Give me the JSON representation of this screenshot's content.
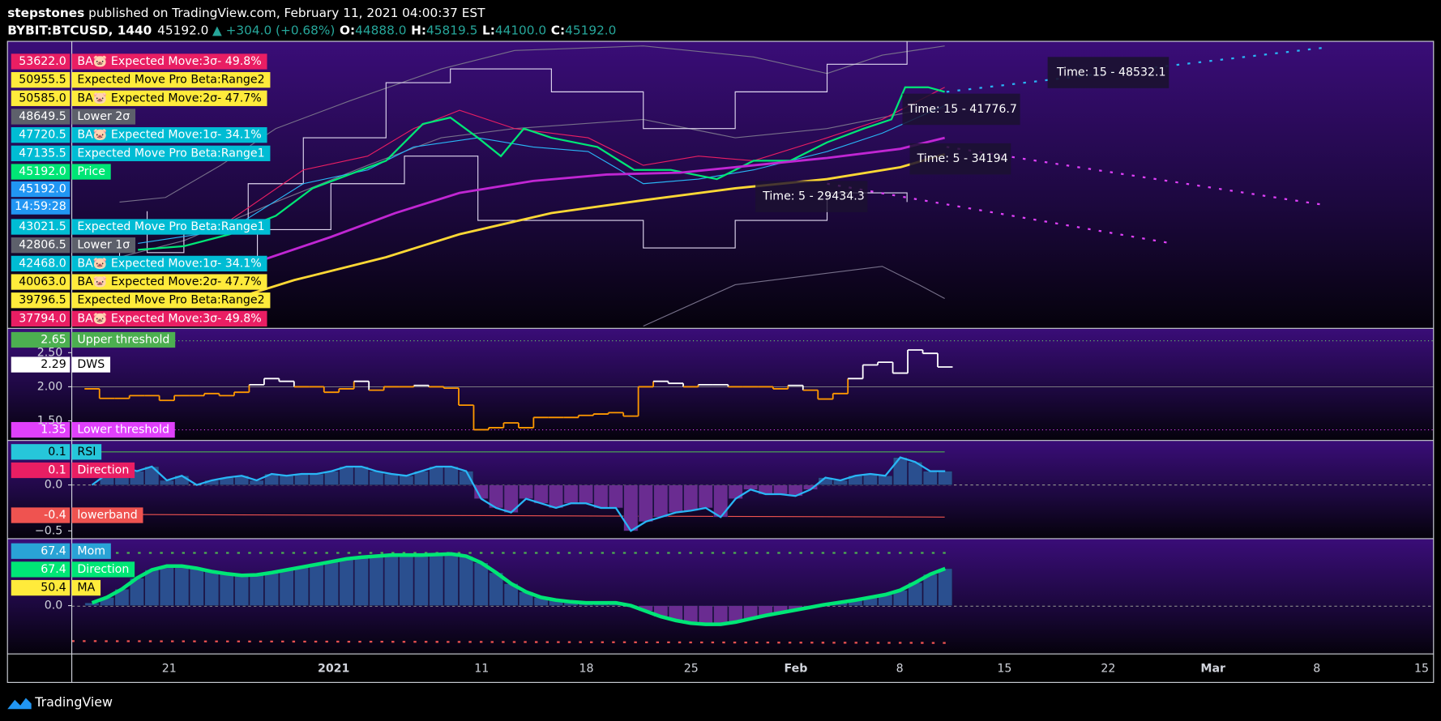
{
  "header": {
    "author": "stepstones",
    "published": " published on TradingView.com, February 11, 2021 04:00:37 EST",
    "symbol": "BYBIT:BTCUSD, 1440",
    "last": "45192.0",
    "change": "▲ +304.0 (+0.68%)",
    "ohlc": [
      {
        "key": "O:",
        "value": "44888.0"
      },
      {
        "key": "H:",
        "value": "45819.5"
      },
      {
        "key": "L:",
        "value": "44100.0"
      },
      {
        "key": "C:",
        "value": "45192.0"
      }
    ]
  },
  "main_pane": {
    "labels": [
      {
        "value": "53622.0",
        "text": "BA🐷 Expected Move:3σ- 49.8%",
        "color": "#e91e63"
      },
      {
        "value": "50955.5",
        "text": "Expected Move Pro Beta:Range2",
        "color": "#ffeb3b"
      },
      {
        "value": "50585.0",
        "text": "BA🐷 Expected Move:2σ- 47.7%",
        "color": "#ffeb3b"
      },
      {
        "value": "48649.5",
        "text": "Lower 2σ",
        "color": "#5d606b"
      },
      {
        "value": "47720.5",
        "text": "BA🐷 Expected Move:1σ- 34.1%",
        "color": "#00bcd4"
      },
      {
        "value": "47135.5",
        "text": "Expected Move Pro Beta:Range1",
        "color": "#00bcd4"
      },
      {
        "value": "45192.0",
        "text": "Price",
        "color": "#00e676"
      },
      {
        "value": "45192.0",
        "color": "#2196f3"
      },
      {
        "value": "14:59:28",
        "color": "#2196f3"
      },
      {
        "value": "43021.5",
        "text": "Expected Move Pro Beta:Range1",
        "color": "#00bcd4"
      },
      {
        "value": "42806.5",
        "text": "Lower 1σ",
        "color": "#5d606b"
      },
      {
        "value": "42468.0",
        "text": "BA🐷 Expected Move:1σ- 34.1%",
        "color": "#00bcd4"
      },
      {
        "value": "40063.0",
        "text": "BA🐷 Expected Move:2σ- 47.7%",
        "color": "#ffeb3b"
      },
      {
        "value": "39796.5",
        "text": "Expected Move Pro Beta:Range2",
        "color": "#ffeb3b"
      },
      {
        "value": "37794.0",
        "text": "BA🐷 Expected Move:3σ- 49.8%",
        "color": "#e91e63"
      }
    ],
    "tooltips": [
      "Time: 15 - 48532.1",
      "Time: 15 - 41776.7",
      "Time: 5 - 34194",
      "Time: 5 - 29434.3"
    ]
  },
  "dws_pane": {
    "labels": [
      {
        "value": "2.65",
        "text": "Upper threshold",
        "color": "#4caf50"
      },
      {
        "value": "2.29",
        "text": "DWS",
        "color": "#ffffff"
      },
      {
        "value": "1.35",
        "text": "Lower threshold",
        "color": "#e040fb"
      }
    ],
    "ylim": [
      1.22,
      2.85
    ],
    "yticks": [
      {
        "value": 2.5,
        "label": "2.50"
      },
      {
        "value": 2,
        "label": "2.00"
      },
      {
        "value": 1.5,
        "label": "1.50"
      }
    ],
    "values": [
      1.97,
      1.83,
      1.83,
      1.87,
      1.87,
      1.8,
      1.87,
      1.87,
      1.9,
      1.87,
      1.92,
      2.03,
      2.12,
      2.08,
      2.0,
      2.0,
      1.92,
      1.97,
      2.08,
      1.95,
      2.0,
      2.0,
      2.02,
      2.0,
      1.98,
      1.73,
      1.37,
      1.4,
      1.47,
      1.4,
      1.55,
      1.55,
      1.55,
      1.58,
      1.6,
      1.62,
      1.57,
      2.0,
      2.08,
      2.05,
      2.0,
      2.03,
      2.03,
      2.0,
      2.0,
      2.0,
      1.97,
      2.02,
      1.95,
      1.82,
      1.9,
      2.12,
      2.32,
      2.36,
      2.2,
      2.54,
      2.49,
      2.29
    ]
  },
  "rsi_pane": {
    "labels": [
      {
        "value": "0.1",
        "text": "RSI",
        "color": "#26c6da"
      },
      {
        "value": "0.1",
        "text": "Direction",
        "color": "#e91e63"
      },
      {
        "value": "-0.4",
        "text": "lowerband",
        "color": "#ef5350"
      }
    ],
    "ylim": [
      -0.58,
      0.48
    ],
    "yticks": [
      {
        "value": 0,
        "label": "0.0"
      },
      {
        "value": -0.5,
        "label": "−0.5"
      }
    ],
    "values": [
      0.0,
      0.12,
      0.2,
      0.15,
      0.2,
      0.05,
      0.1,
      0.0,
      0.05,
      0.08,
      0.1,
      0.05,
      0.12,
      0.1,
      0.12,
      0.12,
      0.15,
      0.2,
      0.2,
      0.15,
      0.12,
      0.1,
      0.15,
      0.2,
      0.2,
      0.15,
      -0.15,
      -0.25,
      -0.3,
      -0.15,
      -0.2,
      -0.25,
      -0.2,
      -0.2,
      -0.25,
      -0.25,
      -0.5,
      -0.4,
      -0.35,
      -0.3,
      -0.28,
      -0.25,
      -0.35,
      -0.15,
      -0.05,
      -0.1,
      -0.1,
      -0.12,
      -0.05,
      0.08,
      0.05,
      0.1,
      0.12,
      0.1,
      0.3,
      0.25,
      0.15,
      0.15
    ]
  },
  "mom_pane": {
    "labels": [
      {
        "value": "67.4",
        "text": "Mom",
        "color": "#29a3d6"
      },
      {
        "value": "67.4",
        "text": "Direction",
        "color": "#00e676"
      },
      {
        "value": "50.4",
        "text": "MA",
        "color": "#ffeb3b"
      }
    ],
    "ylim": [
      -88,
      121
    ],
    "yticks": [
      {
        "value": 0,
        "label": "0.0"
      }
    ],
    "values": [
      5,
      15,
      30,
      50,
      65,
      72,
      72,
      68,
      62,
      58,
      55,
      56,
      60,
      65,
      70,
      75,
      80,
      85,
      88,
      90,
      92,
      92,
      92,
      93,
      94,
      90,
      78,
      60,
      40,
      25,
      15,
      10,
      7,
      5,
      5,
      5,
      0,
      -10,
      -20,
      -27,
      -32,
      -34,
      -34,
      -30,
      -24,
      -18,
      -13,
      -8,
      -3,
      2,
      6,
      10,
      15,
      20,
      28,
      42,
      57,
      67.4
    ]
  },
  "x_axis": [
    "21",
    "2021",
    "11",
    "18",
    "25",
    "Feb",
    "8",
    "15",
    "22",
    "Mar",
    "8",
    "15"
  ],
  "footer": "TradingView"
}
